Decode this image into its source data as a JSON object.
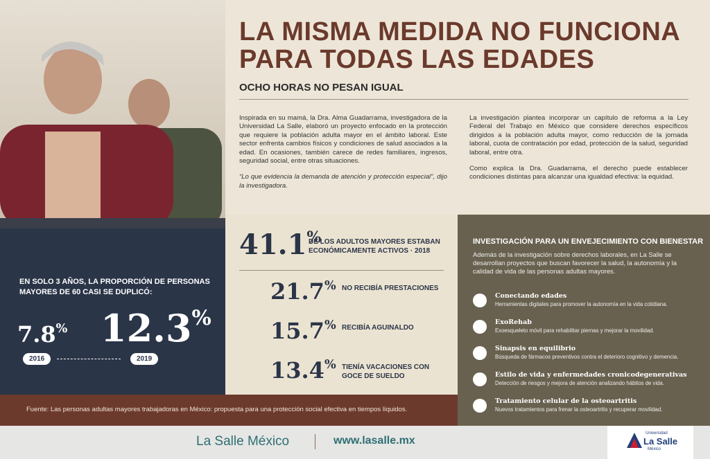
{
  "header": {
    "title": "LA MISMA MEDIDA NO FUNCIONA PARA TODAS LAS EDADES",
    "subtitle": "OCHO HORAS NO PESAN IGUAL"
  },
  "intro": {
    "left": [
      "Inspirada en su mamá, la Dra. Alma Guadarrama, investigadora de la Universidad La Salle, elaboró un proyecto enfocado en la protección que requiere la población adulta mayor en el ámbito laboral. Este sector enfrenta cambios físicos y condiciones de salud asociados a la edad. En ocasiones, también carece de redes familiares, ingresos, seguridad social, entre otras situaciones.",
      "“Lo que evidencia la demanda de atención y protección especial”, dijo la investigadora."
    ],
    "right": [
      "La investigación plantea incorporar un capítulo de reforma a la Ley Federal del Trabajo en México que considere derechos específicos dirigidos a la población adulta mayor, como reducción de la jornada laboral, cuota de contratación por edad, protección de la salud, seguridad laboral, entre otra.",
      "Como explica la Dra. Guadarrama, el derecho puede establecer condiciones distintas para alcanzar una igualdad efectiva: la equidad."
    ]
  },
  "growth": {
    "text": "EN SOLO 3 AÑOS, LA PROPORCIÓN DE PERSONAS MAYORES DE 60 CASI SE DUPLICÓ:",
    "from": {
      "value": "7.8",
      "unit": "%",
      "year": "2016"
    },
    "to": {
      "value": "12.3",
      "unit": "%",
      "year": "2019"
    }
  },
  "stats": {
    "main": {
      "value": "41.1",
      "unit": "%",
      "label": "DE LOS ADULTOS MAYORES ESTABAN ECONÓMICAMENTE ACTIVOS · 2018"
    },
    "items": [
      {
        "value": "21.7",
        "unit": "%",
        "label": "NO RECIBÍA PRESTACIONES"
      },
      {
        "value": "15.7",
        "unit": "%",
        "label": "RECIBÍA AGUINALDO"
      },
      {
        "value": "13.4",
        "unit": "%",
        "label": "TIENÍA VACACIONES CON GOCE DE SUELDO"
      }
    ]
  },
  "research": {
    "title": "INVESTIGACIÓN PARA UN ENVEJECIMIENTO CON BIENESTAR",
    "text": "Además de la investigación sobre derechos laborales, en La Salle se desarrollan proyectos que buscan favorecer la salud, la autonomía y la calidad de vida de las personas adultas mayores.",
    "items": [
      {
        "name": "Conectando edades",
        "desc": "Herramientas digitales para promover la autonomía en la vida cotidiana."
      },
      {
        "name": "ExoRehab",
        "desc": "Exoesqueleto móvil para rehabilitar piernas y mejorar la movilidad."
      },
      {
        "name": "Sinapsis en equilibrio",
        "desc": "Búsqueda de fármacos preventivos contra el deterioro cognitivo y demencia."
      },
      {
        "name": "Estilo de vida y enfermedades cronicodegenerativas",
        "desc": "Detección de riesgos y mejora de atención analizando hábitos de vida."
      },
      {
        "name": "Tratamiento celular de la osteoartritis",
        "desc": "Nuevos tratamientos para frenar la osteoartritis y recuperar movilidad."
      }
    ]
  },
  "source": "Fuente: Las personas adultas mayores trabajadoras en México: propuesta para una protección social efectiva en tiempos líquidos.",
  "footer": {
    "brand": "La Salle México",
    "url": "www.lasalle.mx",
    "logo_top": "Universidad",
    "logo_name": "La Salle",
    "logo_bottom": "México"
  }
}
